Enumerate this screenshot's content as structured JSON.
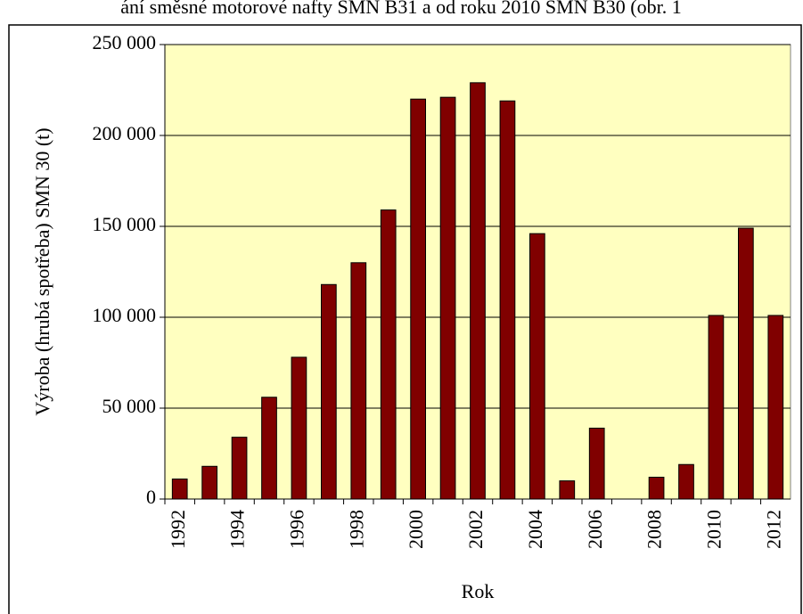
{
  "chart_data": {
    "type": "bar",
    "title": "ání směsné motorové nafty SMN B31 a od roku 2010 SMN B30 (obr. 1",
    "x_label": "Rok",
    "y_label": "Výroba (hrubá spotřeba) SMN 30 (t)",
    "categories": [
      "1992",
      null,
      "1994",
      null,
      "1996",
      null,
      "1998",
      null,
      "2000",
      null,
      "2002",
      null,
      "2004",
      null,
      "2006",
      null,
      "2008",
      null,
      "2010",
      null,
      "2012"
    ],
    "values": [
      11000,
      18000,
      34000,
      56000,
      78000,
      118000,
      130000,
      159000,
      220000,
      221000,
      229000,
      219000,
      146000,
      10000,
      39000,
      0,
      12000,
      19000,
      101000,
      149000,
      101000
    ],
    "color": "#800000",
    "ylim": [
      0,
      250000
    ],
    "yticks": [
      0,
      {
        "value": 50000,
        "label": "50 000"
      },
      {
        "value": 100000,
        "label": "100 000"
      },
      {
        "value": 150000,
        "label": "150 000"
      },
      {
        "value": 200000,
        "label": "200 000"
      },
      {
        "value": 250000,
        "label": "250 000"
      }
    ],
    "grid": true
  }
}
